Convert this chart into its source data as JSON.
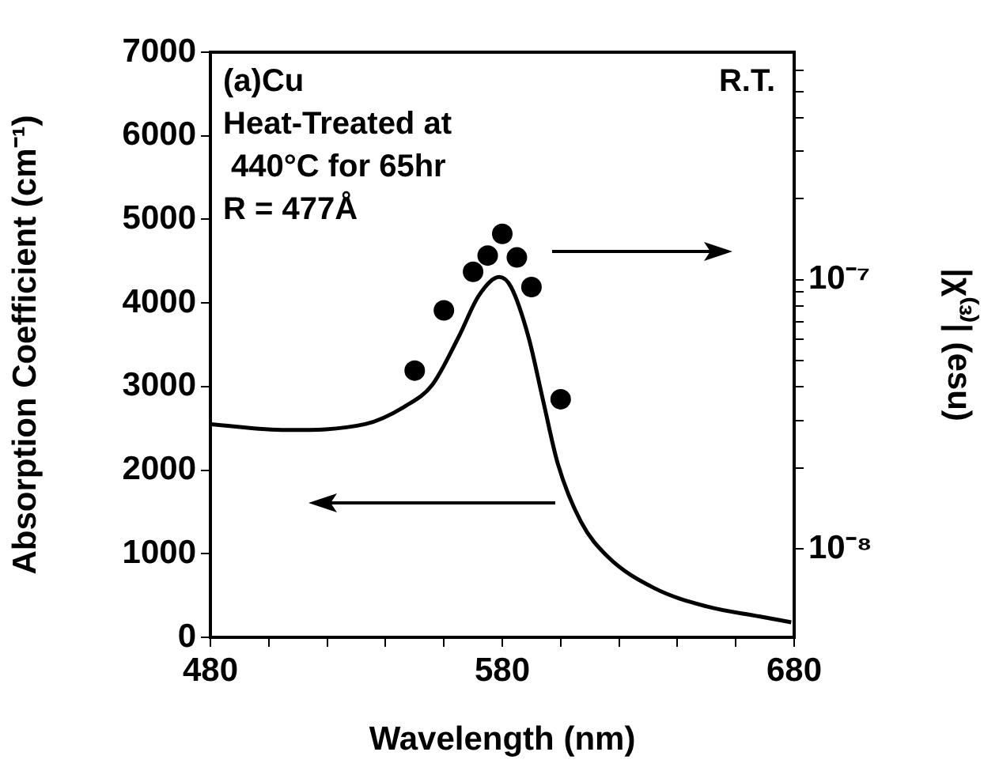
{
  "chart_data": {
    "type": "line",
    "xlabel": "Wavelength (nm)",
    "ylabel": "Absorption Coefficient (cm⁻¹)",
    "y2label": "|χ⁽³⁾| (esu)",
    "xlim": [
      480,
      680
    ],
    "xticks": [
      480,
      {
        "value": 500,
        "label": null
      },
      {
        "value": 520,
        "label": null
      },
      {
        "value": 540,
        "label": null
      },
      {
        "value": 560,
        "label": null
      },
      580,
      {
        "value": 600,
        "label": null
      },
      {
        "value": 620,
        "label": null
      },
      {
        "value": 640,
        "label": null
      },
      {
        "value": 660,
        "label": null
      },
      680
    ],
    "ylim": [
      0,
      7000
    ],
    "yticks": [
      0,
      1000,
      2000,
      3000,
      4000,
      5000,
      6000,
      7000
    ],
    "y2lim": [
      4.7e-09,
      7e-07
    ],
    "log": "y2",
    "y2ticks": [
      {
        "value": 1e-08,
        "label": "10⁻⁸"
      },
      {
        "value": 2e-08,
        "label": null
      },
      {
        "value": 3e-08,
        "label": null
      },
      {
        "value": 4e-08,
        "label": null
      },
      {
        "value": 5e-08,
        "label": null
      },
      {
        "value": 6e-08,
        "label": null
      },
      {
        "value": 7e-08,
        "label": null
      },
      {
        "value": 8e-08,
        "label": null
      },
      {
        "value": 9e-08,
        "label": null
      },
      {
        "value": 1e-07,
        "label": "10⁻⁷"
      },
      {
        "value": 2e-07,
        "label": null
      },
      {
        "value": 3e-07,
        "label": null
      },
      {
        "value": 4e-07,
        "label": null
      },
      {
        "value": 5e-07,
        "label": null
      },
      {
        "value": 6e-07,
        "label": null
      }
    ],
    "grid": false,
    "legend": false,
    "series": [
      {
        "color": "#000000",
        "marker": "none",
        "line_style": "solid",
        "x": [
          480,
          506,
          533,
          547,
          556,
          565,
          572,
          579,
          583,
          589,
          594,
          599,
          607,
          616,
          632,
          650,
          668,
          679
        ],
        "values": [
          2550,
          2480,
          2550,
          2770,
          3020,
          3590,
          4090,
          4310,
          4190,
          3590,
          2830,
          2080,
          1380,
          970,
          590,
          370,
          250,
          180
        ]
      },
      {
        "type": "scatter",
        "axis": "y2",
        "color": "#000000",
        "marker": "circle",
        "x": [
          550,
          560,
          570,
          575,
          580,
          585,
          590,
          600
        ],
        "values": [
          4.6e-08,
          7.7e-08,
          1.07e-07,
          1.23e-07,
          1.48e-07,
          1.21e-07,
          9.4e-08,
          3.6e-08
        ]
      }
    ],
    "annotations": [
      "(a)Cu",
      "R.T.",
      "Heat-Treated at",
      "440°C for 65hr",
      "R = 477Å"
    ]
  }
}
